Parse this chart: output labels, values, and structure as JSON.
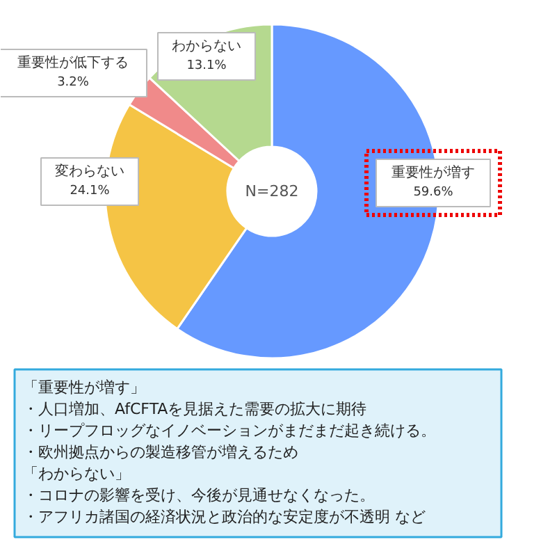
{
  "chart_data": {
    "type": "donut",
    "categories": [
      "重要性が増す",
      "変わらない",
      "重要性が低下する",
      "わからない"
    ],
    "values": [
      59.6,
      24.1,
      3.2,
      13.1
    ],
    "colors": [
      "#6699ff",
      "#f5c445",
      "#f08a8a",
      "#b5d98f"
    ],
    "value_labels": [
      "59.6%",
      "24.1%",
      "3.2%",
      "13.1%"
    ],
    "annotations": [
      "N=282",
      "「重要性が増す」",
      "・人口増加、AfCFTAを見据えた需要の拡大に期待",
      "・リープフロッグなイノベーションがまだまだ起き続ける。",
      "・欧州拠点からの製造移管が増えるため",
      "「わからない」",
      "・コロナの影響を受け、今後が見通せなくなった。",
      "・アフリカ諸国の経済状況と政治的な安定度が不透明 など"
    ]
  }
}
